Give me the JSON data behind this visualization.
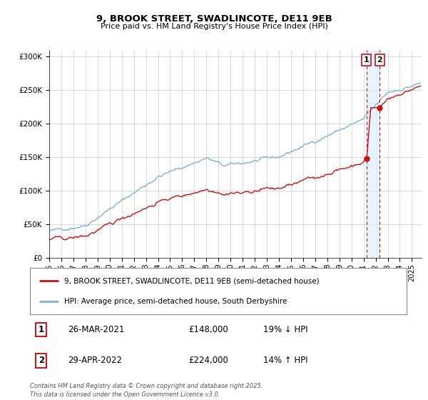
{
  "title": "9, BROOK STREET, SWADLINCOTE, DE11 9EB",
  "subtitle": "Price paid vs. HM Land Registry's House Price Index (HPI)",
  "legend_line1": "9, BROOK STREET, SWADLINCOTE, DE11 9EB (semi-detached house)",
  "legend_line2": "HPI: Average price, semi-detached house, South Derbyshire",
  "hpi_color": "#7ab3d4",
  "price_color": "#cc1111",
  "shade_color": "#ddeeff",
  "vline_color": "#cc1111",
  "ylabel": "",
  "footer": "Contains HM Land Registry data © Crown copyright and database right 2025.\nThis data is licensed under the Open Government Licence v3.0.",
  "table_rows": [
    {
      "num": "1",
      "date": "26-MAR-2021",
      "price": "£148,000",
      "hpi": "19% ↓ HPI"
    },
    {
      "num": "2",
      "date": "29-APR-2022",
      "price": "£224,000",
      "hpi": "14% ↑ HPI"
    }
  ],
  "sale1_year": 2021.23,
  "sale1_price": 148000,
  "sale2_year": 2022.33,
  "sale2_price": 224000,
  "ylim_max": 310000,
  "ylim_min": 0,
  "yticks": [
    0,
    50000,
    100000,
    150000,
    200000,
    250000,
    300000
  ],
  "ytick_labels": [
    "£0",
    "£50K",
    "£100K",
    "£150K",
    "£200K",
    "£250K",
    "£300K"
  ],
  "xlim_min": 1995,
  "xlim_max": 2025.8,
  "background_color": "#ffffff",
  "grid_color": "#cccccc",
  "seed": 42
}
